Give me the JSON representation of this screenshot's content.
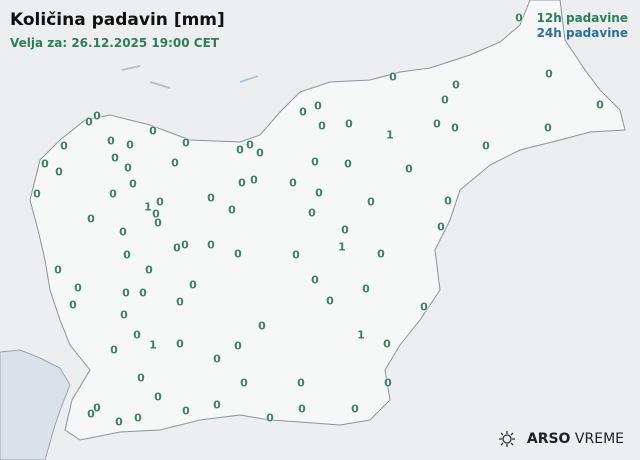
{
  "header": {
    "title": "Količina padavin [mm]",
    "valid": "Velja za: 26.12.2025 19:00 CET"
  },
  "legend": {
    "h12": "12h padavine",
    "h24": "24h padavine",
    "h12_color": "#2e7d5b",
    "h24_color": "#2a6f9e"
  },
  "logo": {
    "brand": "ARSO",
    "product": "VREME",
    "icon": "sun-cloud-icon"
  },
  "stations": [
    "0",
    "0",
    "0",
    "0",
    "0",
    "0",
    "0",
    "0",
    "0",
    "0",
    "0",
    "0",
    "0",
    "0",
    "0",
    "0",
    "0",
    "0",
    "0",
    "0",
    "0",
    "0",
    "1",
    "0",
    "0",
    "0",
    "0",
    "0",
    "0",
    "0",
    "0",
    "0",
    "0",
    "0",
    "0",
    "0",
    "0",
    "0",
    "0",
    "0",
    "0",
    "0",
    "0",
    "0",
    "1",
    "0",
    "0",
    "0",
    "0",
    "0",
    "0",
    "0",
    "0",
    "0",
    "0",
    "0",
    "0",
    "0",
    "0",
    "0",
    "0",
    "0",
    "0",
    "0",
    "1",
    "0",
    "0",
    "0",
    "0",
    "0",
    "1",
    "0",
    "0",
    "0",
    "0",
    "0",
    "0",
    "0",
    "0",
    "0",
    "0",
    "0",
    "0",
    "0",
    "0",
    "1",
    "0",
    "0",
    "0",
    "0",
    "0",
    "0",
    "0",
    "0",
    "0",
    "0",
    "0"
  ]
}
